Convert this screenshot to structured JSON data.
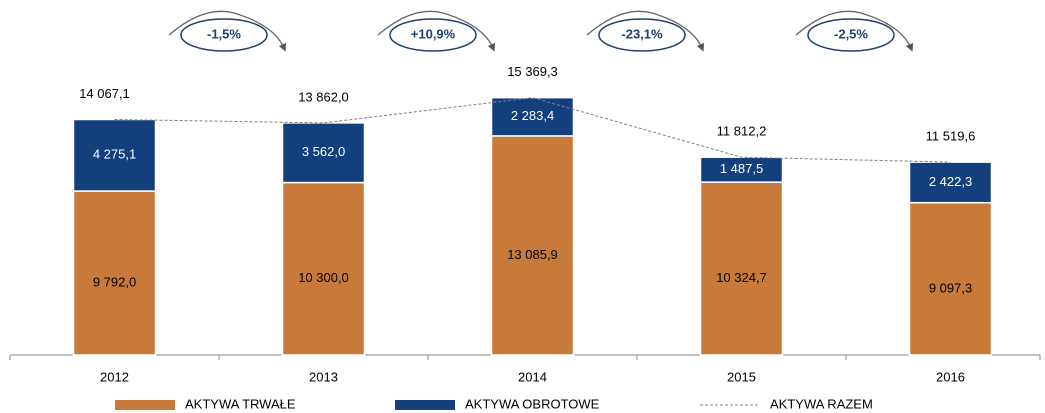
{
  "chart_data": {
    "type": "stacked_bar",
    "categories": [
      "2012",
      "2013",
      "2014",
      "2015",
      "2016"
    ],
    "series": [
      {
        "name": "AKTYWA TRWAŁE",
        "color": "#c87a3a",
        "values": [
          9792.0,
          10300.0,
          13085.9,
          10324.7,
          9097.3
        ],
        "value_labels": [
          "9 792,0",
          "10 300,0",
          "13 085,9",
          "10 324,7",
          "9 097,3"
        ]
      },
      {
        "name": "AKTYWA OBROTOWE",
        "color": "#133f7c",
        "values": [
          4275.1,
          3562.0,
          2283.4,
          1487.5,
          2422.3
        ],
        "value_labels": [
          "4 275,1",
          "3 562,0",
          "2 283,4",
          "1 487,5",
          "2 422,3"
        ]
      },
      {
        "name": "AKTYWA RAZEM",
        "type": "line",
        "color": "#7f7f7f",
        "dashed": true,
        "values": [
          14067.1,
          13862.0,
          15369.3,
          11812.2,
          11519.6
        ],
        "value_labels": [
          "14 067,1",
          "13 862,0",
          "15 369,3",
          "11 812,2",
          "11 519,6"
        ]
      }
    ],
    "annotations": [
      "-1,5%",
      "+10,9%",
      "-23,1%",
      "-2,5%"
    ],
    "ylim": [
      0,
      17500
    ]
  }
}
